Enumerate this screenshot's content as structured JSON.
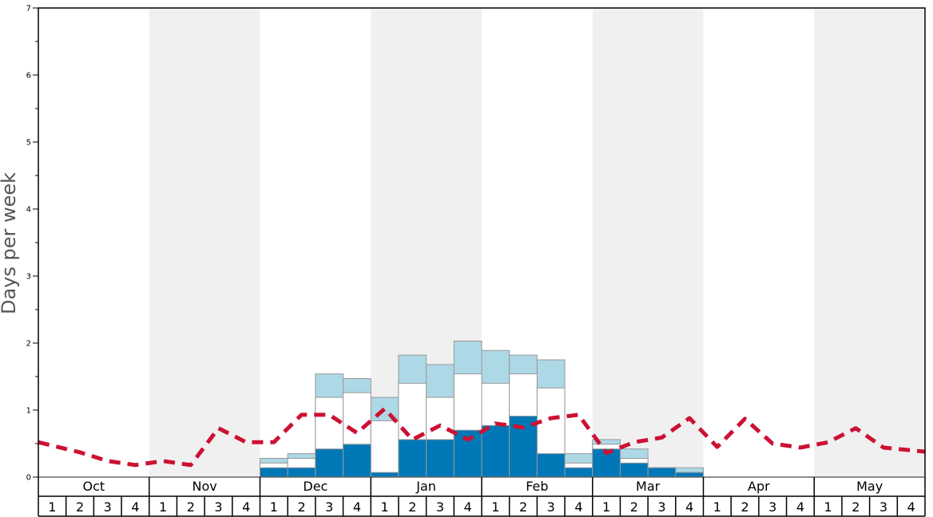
{
  "chart_data": {
    "type": "bar",
    "title": "",
    "ylabel": "Days per week",
    "ylim": [
      0,
      7
    ],
    "yticks": [
      0,
      1,
      2,
      3,
      4,
      5,
      6,
      7
    ],
    "months": [
      "Oct",
      "Nov",
      "Dec",
      "Jan",
      "Feb",
      "Mar",
      "Apr",
      "May"
    ],
    "weeks": [
      "1",
      "2",
      "3",
      "4"
    ],
    "shaded_months": [
      "Nov",
      "Jan",
      "Mar",
      "May"
    ],
    "colors": {
      "dark": "#0077b6",
      "mid": "#ffffff",
      "light": "#add8e6",
      "line": "#cc1133",
      "shade": "#f0f0f0",
      "bar_border": "#999999"
    },
    "series": [
      {
        "values": [
          0,
          0,
          0,
          0,
          0,
          0,
          0,
          0,
          0.14,
          0.14,
          0.42,
          0.49,
          0.07,
          0.56,
          0.56,
          0.7,
          0.77,
          0.91,
          0.35,
          0.14,
          0.42,
          0.21,
          0.14,
          0.07,
          0,
          0,
          0,
          0,
          0,
          0,
          0,
          0
        ]
      },
      {
        "values": [
          0,
          0,
          0,
          0,
          0,
          0,
          0,
          0,
          0.21,
          0.28,
          1.19,
          1.26,
          0.84,
          1.4,
          1.19,
          1.54,
          1.4,
          1.54,
          1.33,
          0.21,
          0.49,
          0.28,
          0.14,
          0.07,
          0,
          0,
          0,
          0,
          0,
          0,
          0,
          0
        ]
      },
      {
        "values": [
          0,
          0,
          0,
          0,
          0,
          0,
          0,
          0,
          0.28,
          0.35,
          1.54,
          1.47,
          1.19,
          1.82,
          1.68,
          2.03,
          1.89,
          1.82,
          1.75,
          0.35,
          0.56,
          0.42,
          0.14,
          0.14,
          0,
          0,
          0,
          0,
          0,
          0,
          0,
          0
        ]
      },
      {
        "line": true,
        "values": [
          0.52,
          0.37,
          0.24,
          0.18,
          0.24,
          0.18,
          0.73,
          0.52,
          0.52,
          0.93,
          0.93,
          0.66,
          1.02,
          0.56,
          0.77,
          0.56,
          0.8,
          0.74,
          0.88,
          0.93,
          0.36,
          0.52,
          0.59,
          0.88,
          0.45,
          0.87,
          0.5,
          0.44,
          0.52,
          0.73,
          0.44,
          0.38
        ]
      }
    ]
  }
}
